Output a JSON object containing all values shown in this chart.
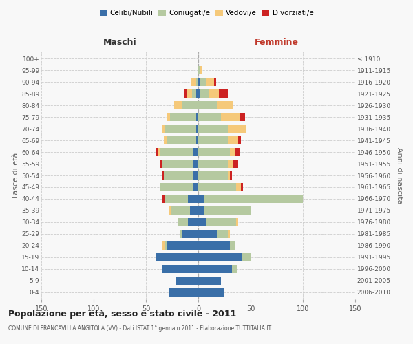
{
  "age_groups": [
    "0-4",
    "5-9",
    "10-14",
    "15-19",
    "20-24",
    "25-29",
    "30-34",
    "35-39",
    "40-44",
    "45-49",
    "50-54",
    "55-59",
    "60-64",
    "65-69",
    "70-74",
    "75-79",
    "80-84",
    "85-89",
    "90-94",
    "95-99",
    "100+"
  ],
  "birth_years": [
    "2006-2010",
    "2001-2005",
    "1996-2000",
    "1991-1995",
    "1986-1990",
    "1981-1985",
    "1976-1980",
    "1971-1975",
    "1966-1970",
    "1961-1965",
    "1956-1960",
    "1951-1955",
    "1946-1950",
    "1941-1945",
    "1936-1940",
    "1931-1935",
    "1926-1930",
    "1921-1925",
    "1916-1920",
    "1911-1915",
    "≤ 1910"
  ],
  "males_celibi": [
    28,
    22,
    35,
    40,
    30,
    15,
    10,
    8,
    10,
    5,
    5,
    5,
    5,
    2,
    2,
    2,
    0,
    2,
    0,
    0,
    0
  ],
  "males_coniugati": [
    0,
    0,
    0,
    0,
    2,
    2,
    10,
    18,
    22,
    32,
    28,
    30,
    32,
    28,
    30,
    25,
    15,
    4,
    2,
    0,
    0
  ],
  "males_vedovi": [
    0,
    0,
    0,
    0,
    2,
    0,
    0,
    2,
    0,
    0,
    0,
    0,
    2,
    3,
    2,
    3,
    8,
    5,
    5,
    0,
    0
  ],
  "males_divorziati": [
    0,
    0,
    0,
    0,
    0,
    0,
    0,
    0,
    2,
    0,
    2,
    2,
    2,
    0,
    0,
    0,
    0,
    2,
    0,
    0,
    0
  ],
  "females_nubili": [
    25,
    22,
    32,
    42,
    30,
    18,
    8,
    5,
    5,
    0,
    0,
    0,
    0,
    0,
    0,
    0,
    0,
    2,
    2,
    0,
    0
  ],
  "females_coniugate": [
    0,
    0,
    5,
    8,
    5,
    10,
    28,
    45,
    95,
    36,
    28,
    28,
    30,
    28,
    28,
    22,
    18,
    8,
    5,
    2,
    0
  ],
  "females_vedove": [
    0,
    0,
    0,
    0,
    0,
    2,
    2,
    0,
    0,
    5,
    2,
    5,
    5,
    10,
    18,
    18,
    15,
    10,
    8,
    2,
    0
  ],
  "females_divorziate": [
    0,
    0,
    0,
    0,
    0,
    0,
    0,
    0,
    0,
    2,
    2,
    5,
    5,
    3,
    0,
    5,
    0,
    8,
    2,
    0,
    0
  ],
  "color_celibi": "#3a6fa8",
  "color_coniugati": "#b5c9a0",
  "color_vedovi": "#f5c97a",
  "color_divorziati": "#cc2222",
  "title": "Popolazione per età, sesso e stato civile - 2011",
  "subtitle": "COMUNE DI FRANCAVILLA ANGITOLA (VV) - Dati ISTAT 1° gennaio 2011 - Elaborazione TUTTITALIA.IT",
  "legend_labels": [
    "Celibi/Nubili",
    "Coniugati/e",
    "Vedovi/e",
    "Divorziati/e"
  ],
  "xlim": 150,
  "bg_color": "#f8f8f8"
}
